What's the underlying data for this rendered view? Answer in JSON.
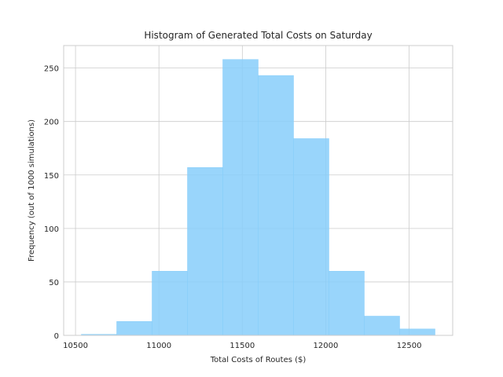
{
  "chart_data": {
    "type": "bar",
    "subtype": "histogram",
    "title": "Histogram of Generated Total Costs on Saturday",
    "xlabel": "Total Costs of Routes ($)",
    "ylabel": "Frequency (out of 1000 simulations)",
    "bins": [
      {
        "start": 10535,
        "end": 10747,
        "count": 1
      },
      {
        "start": 10747,
        "end": 10959,
        "count": 13
      },
      {
        "start": 10959,
        "end": 11171,
        "count": 60
      },
      {
        "start": 11171,
        "end": 11383,
        "count": 157
      },
      {
        "start": 11383,
        "end": 11595,
        "count": 258
      },
      {
        "start": 11595,
        "end": 11807,
        "count": 243
      },
      {
        "start": 11807,
        "end": 12019,
        "count": 184
      },
      {
        "start": 12019,
        "end": 12231,
        "count": 60
      },
      {
        "start": 12231,
        "end": 12443,
        "count": 18
      },
      {
        "start": 12443,
        "end": 12655,
        "count": 6
      }
    ],
    "xlim": [
      10429,
      12761
    ],
    "ylim": [
      0,
      271
    ],
    "xticks": [
      10500,
      11000,
      11500,
      12000,
      12500
    ],
    "yticks": [
      0,
      50,
      100,
      150,
      200,
      250
    ],
    "xtick_labels": [
      "10500",
      "11000",
      "11500",
      "12000",
      "12500"
    ],
    "ytick_labels": [
      "0",
      "50",
      "100",
      "150",
      "200",
      "250"
    ],
    "grid": true,
    "bar_color": "#87cefa",
    "bar_alpha": 0.85,
    "grid_color": "#cccccc",
    "spine_color": "#cccccc",
    "text_color": "#262626"
  }
}
